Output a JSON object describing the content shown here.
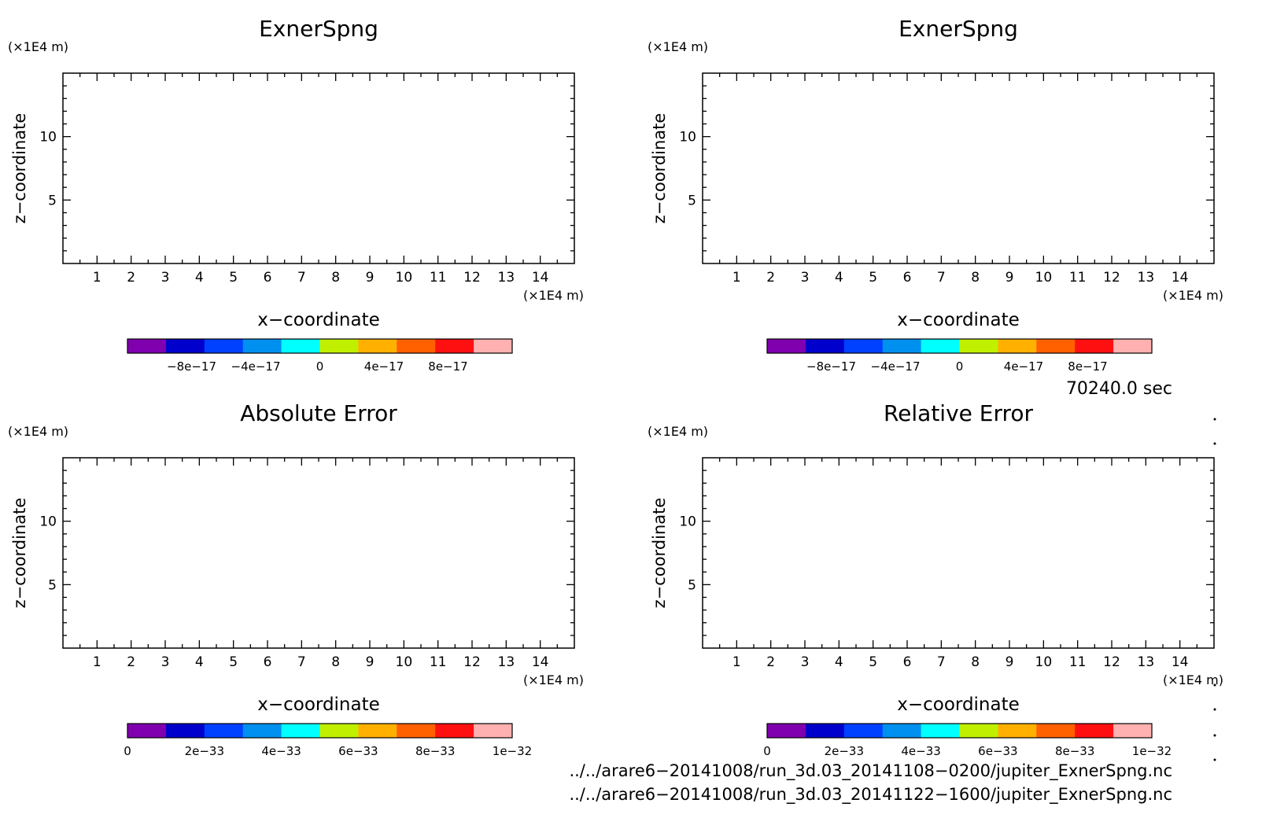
{
  "chart_data": [
    {
      "type": "heatmap",
      "title": "ExnerSpng",
      "xlabel": "x−coordinate",
      "ylabel": "z−coordinate",
      "xunit": "(×1E4 m)",
      "yunit": "(×1E4 m)",
      "xlim": [
        0,
        15
      ],
      "ylim": [
        0,
        15
      ],
      "xticks": [
        1,
        2,
        3,
        4,
        5,
        6,
        7,
        8,
        9,
        10,
        11,
        12,
        13,
        14
      ],
      "yticks": [
        5,
        10
      ],
      "colorbar": {
        "range": [
          -1.2e-16,
          1.2e-16
        ],
        "colors": [
          "#8000b0",
          "#0000cc",
          "#0040ff",
          "#0090f0",
          "#00ffff",
          "#c0f000",
          "#ffb000",
          "#ff6000",
          "#ff1010",
          "#ffb0b0"
        ],
        "tick_values": [
          -8e-17,
          -4e-17,
          0,
          4e-17,
          8e-17
        ],
        "tick_labels": [
          "−8e−17",
          "−4e−17",
          "0",
          "4e−17",
          "8e−17"
        ]
      }
    },
    {
      "type": "heatmap",
      "title": "ExnerSpng",
      "xlabel": "x−coordinate",
      "ylabel": "z−coordinate",
      "xunit": "(×1E4 m)",
      "yunit": "(×1E4 m)",
      "xlim": [
        0,
        15
      ],
      "ylim": [
        0,
        15
      ],
      "xticks": [
        1,
        2,
        3,
        4,
        5,
        6,
        7,
        8,
        9,
        10,
        11,
        12,
        13,
        14
      ],
      "yticks": [
        5,
        10
      ],
      "colorbar": {
        "range": [
          -1.2e-16,
          1.2e-16
        ],
        "colors": [
          "#8000b0",
          "#0000cc",
          "#0040ff",
          "#0090f0",
          "#00ffff",
          "#c0f000",
          "#ffb000",
          "#ff6000",
          "#ff1010",
          "#ffb0b0"
        ],
        "tick_values": [
          -8e-17,
          -4e-17,
          0,
          4e-17,
          8e-17
        ],
        "tick_labels": [
          "−8e−17",
          "−4e−17",
          "0",
          "4e−17",
          "8e−17"
        ]
      }
    },
    {
      "type": "heatmap",
      "title": "Absolute Error",
      "xlabel": "x−coordinate",
      "ylabel": "z−coordinate",
      "xunit": "(×1E4 m)",
      "yunit": "(×1E4 m)",
      "xlim": [
        0,
        15
      ],
      "ylim": [
        0,
        15
      ],
      "xticks": [
        1,
        2,
        3,
        4,
        5,
        6,
        7,
        8,
        9,
        10,
        11,
        12,
        13,
        14
      ],
      "yticks": [
        5,
        10
      ],
      "colorbar": {
        "range": [
          0,
          1e-32
        ],
        "colors": [
          "#8000b0",
          "#0000cc",
          "#0040ff",
          "#0090f0",
          "#00ffff",
          "#c0f000",
          "#ffb000",
          "#ff6000",
          "#ff1010",
          "#ffb0b0"
        ],
        "tick_values": [
          0,
          2e-33,
          4e-33,
          6e-33,
          8e-33,
          1e-32
        ],
        "tick_labels": [
          "0",
          "2e−33",
          "4e−33",
          "6e−33",
          "8e−33",
          "1e−32"
        ]
      }
    },
    {
      "type": "heatmap",
      "title": "Relative Error",
      "xlabel": "x−coordinate",
      "ylabel": "z−coordinate",
      "xunit": "(×1E4 m)",
      "yunit": "(×1E4 m)",
      "xlim": [
        0,
        15
      ],
      "ylim": [
        0,
        15
      ],
      "xticks": [
        1,
        2,
        3,
        4,
        5,
        6,
        7,
        8,
        9,
        10,
        11,
        12,
        13,
        14
      ],
      "yticks": [
        5,
        10
      ],
      "colorbar": {
        "range": [
          0,
          1e-32
        ],
        "colors": [
          "#8000b0",
          "#0000cc",
          "#0040ff",
          "#0090f0",
          "#00ffff",
          "#c0f000",
          "#ffb000",
          "#ff6000",
          "#ff1010",
          "#ffb0b0"
        ],
        "tick_values": [
          0,
          2e-33,
          4e-33,
          6e-33,
          8e-33,
          1e-32
        ],
        "tick_labels": [
          "0",
          "2e−33",
          "4e−33",
          "6e−33",
          "8e−33",
          "1e−32"
        ]
      }
    }
  ],
  "info": {
    "time": "70240.0 sec",
    "file1": "../../arare6−20141008/run_3d.03_20141108−0200/jupiter_ExnerSpng.nc",
    "file2": "../../arare6−20141008/run_3d.03_20141122−1600/jupiter_ExnerSpng.nc"
  }
}
